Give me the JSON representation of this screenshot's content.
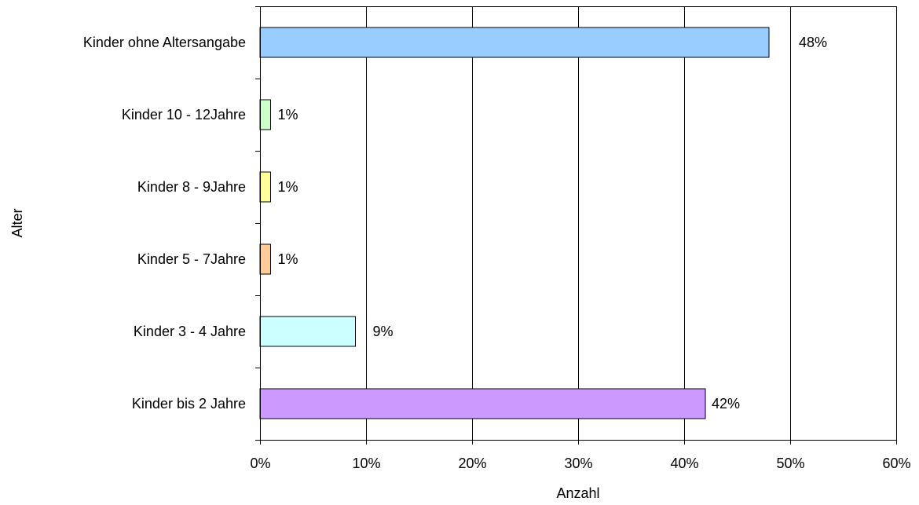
{
  "chart_data": {
    "type": "bar",
    "orientation": "horizontal",
    "categories": [
      "Kinder bis 2 Jahre",
      "Kinder 3 - 4 Jahre",
      "Kinder 5 - 7Jahre",
      "Kinder 8 - 9Jahre",
      "Kinder 10 - 12Jahre",
      "Kinder ohne Altersangabe"
    ],
    "values": [
      42,
      9,
      1,
      1,
      1,
      48
    ],
    "value_labels": [
      "42%",
      "9%",
      "1%",
      "1%",
      "1%",
      "48%"
    ],
    "colors": [
      "#cc99ff",
      "#ccffff",
      "#ffcc99",
      "#ffff99",
      "#ccffcc",
      "#99ccff"
    ],
    "xlabel": "Anzahl",
    "ylabel": "Alter",
    "xlim": [
      0,
      60
    ],
    "xticks": [
      0,
      10,
      20,
      30,
      40,
      50,
      60
    ],
    "xtick_labels": [
      "0%",
      "10%",
      "20%",
      "30%",
      "40%",
      "50%",
      "60%"
    ],
    "grid": "vertical",
    "legend": "none"
  }
}
